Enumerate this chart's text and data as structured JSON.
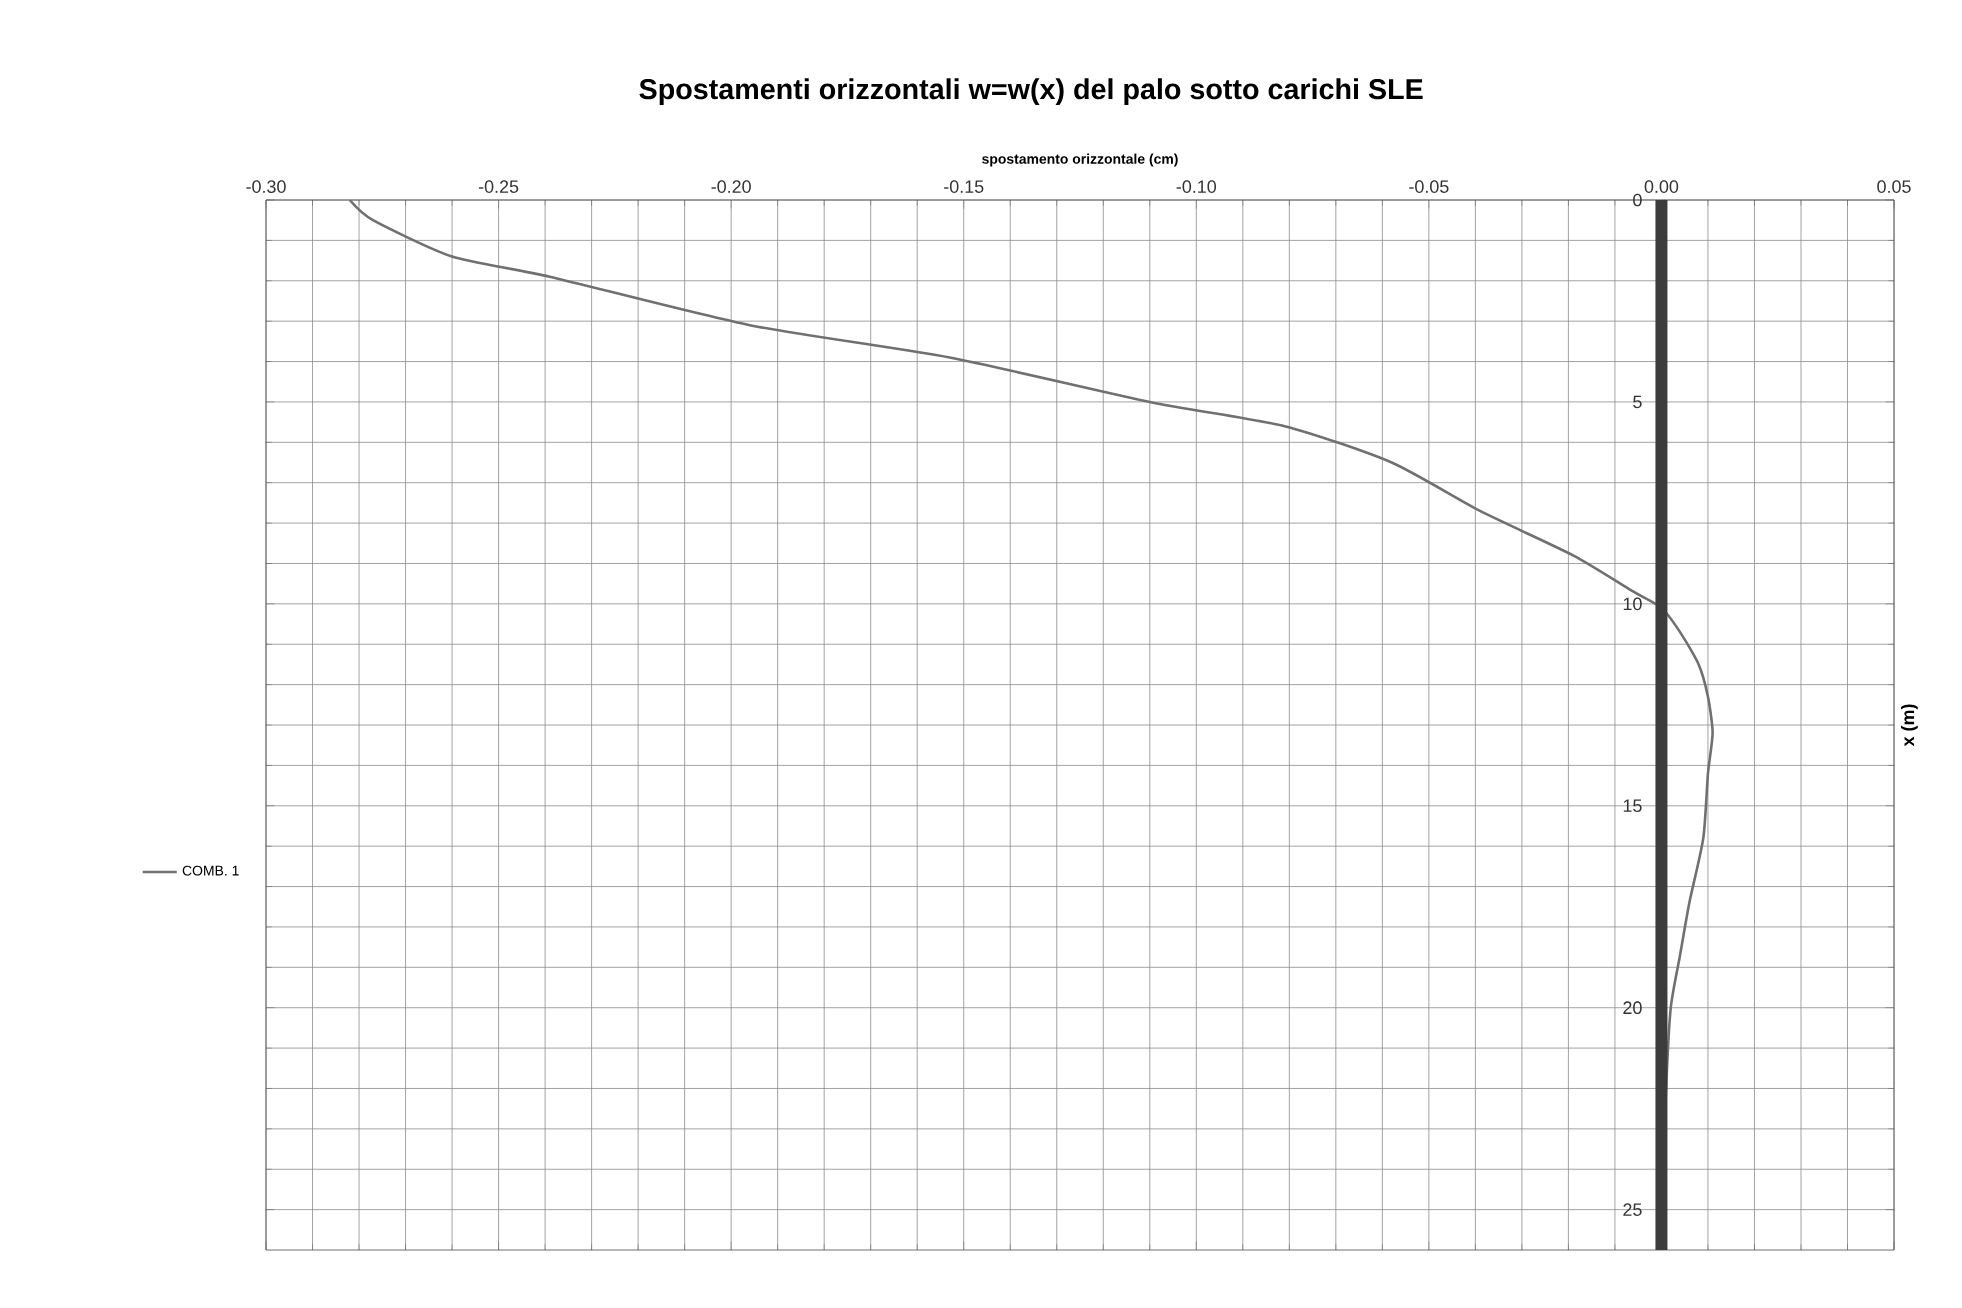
{
  "chart_data": {
    "type": "line",
    "title": "Spostamenti orizzontali w=w(x) del palo sotto carichi SLE",
    "xlabel": "spostamento orizzontale (cm)",
    "ylabel": "x (m)",
    "xlim": [
      -0.3,
      0.05
    ],
    "xticks": [
      {
        "value": -0.3,
        "label": "-0.30"
      },
      {
        "value": -0.25,
        "label": "-0.25"
      },
      {
        "value": -0.2,
        "label": "-0.20"
      },
      {
        "value": -0.15,
        "label": "-0.15"
      },
      {
        "value": -0.1,
        "label": "-0.10"
      },
      {
        "value": -0.05,
        "label": "-0.05"
      },
      {
        "value": 0,
        "label": "0.00"
      },
      0.05
    ],
    "ylim": [
      26,
      0
    ],
    "yticks": [
      0,
      5,
      10,
      15,
      20,
      25
    ],
    "grid": true,
    "legend": "left",
    "series": [
      {
        "name": "COMB. 1",
        "color": "#707070",
        "x": [
          -0.282,
          -0.277,
          -0.26,
          -0.239,
          -0.196,
          -0.153,
          -0.11,
          -0.081,
          -0.058,
          -0.039,
          -0.019,
          -0.006,
          0,
          0.004,
          0.008,
          0.01,
          0.011,
          0.01,
          0.009,
          0.006,
          0.004,
          0.002,
          0.001,
          0.0005,
          0
        ],
        "values": [
          0,
          0.5,
          1.4,
          1.9,
          3.1,
          3.9,
          5,
          5.6,
          6.5,
          7.7,
          8.8,
          9.7,
          10.1,
          10.7,
          11.5,
          12.3,
          13.2,
          14.2,
          15.8,
          17.4,
          18.7,
          20,
          22,
          24,
          26
        ]
      },
      {
        "color": "#3c3c3c",
        "x": [
          0,
          0
        ],
        "values": [
          0,
          26
        ]
      }
    ]
  }
}
